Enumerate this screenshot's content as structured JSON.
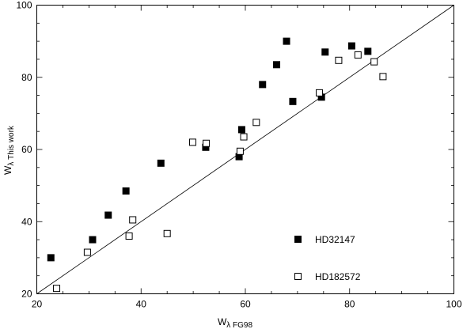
{
  "chart_data": {
    "type": "scatter",
    "xlabel": {
      "main": "W",
      "sub": "λ FG98"
    },
    "ylabel": {
      "main": "W",
      "sub": "λ This work"
    },
    "xlim": [
      20,
      100
    ],
    "ylim": [
      20,
      100
    ],
    "xticks": [
      "20",
      "40",
      "60",
      "80",
      "100"
    ],
    "yticks": [
      "20",
      "40",
      "60",
      "80",
      "100"
    ],
    "grid": false,
    "legend_position": "bottom-right",
    "reference_line": {
      "label": "",
      "x": [
        20,
        100
      ],
      "y": [
        20,
        100
      ]
    },
    "series": [
      {
        "name": "HD32147",
        "marker": "filled-square",
        "color": "#000000",
        "points": [
          [
            22.7,
            30.0
          ],
          [
            30.7,
            35.0
          ],
          [
            33.7,
            41.8
          ],
          [
            37.1,
            48.5
          ],
          [
            43.8,
            56.2
          ],
          [
            52.4,
            60.6
          ],
          [
            58.8,
            58.0
          ],
          [
            59.3,
            65.5
          ],
          [
            63.3,
            78.0
          ],
          [
            66.0,
            83.5
          ],
          [
            67.9,
            90.0
          ],
          [
            69.1,
            73.3
          ],
          [
            74.6,
            74.5
          ],
          [
            75.3,
            87.0
          ],
          [
            80.4,
            88.7
          ],
          [
            83.5,
            87.2
          ]
        ]
      },
      {
        "name": "HD182572",
        "marker": "open-square",
        "color": "#000000",
        "points": [
          [
            23.8,
            21.5
          ],
          [
            29.7,
            31.5
          ],
          [
            37.7,
            36.0
          ],
          [
            38.4,
            40.5
          ],
          [
            45.0,
            36.7
          ],
          [
            49.9,
            62.0
          ],
          [
            52.5,
            61.7
          ],
          [
            59.0,
            59.5
          ],
          [
            59.7,
            63.5
          ],
          [
            62.1,
            67.5
          ],
          [
            74.2,
            75.7
          ],
          [
            77.9,
            84.7
          ],
          [
            81.6,
            86.2
          ],
          [
            84.7,
            84.3
          ],
          [
            86.4,
            80.2
          ]
        ]
      }
    ]
  }
}
